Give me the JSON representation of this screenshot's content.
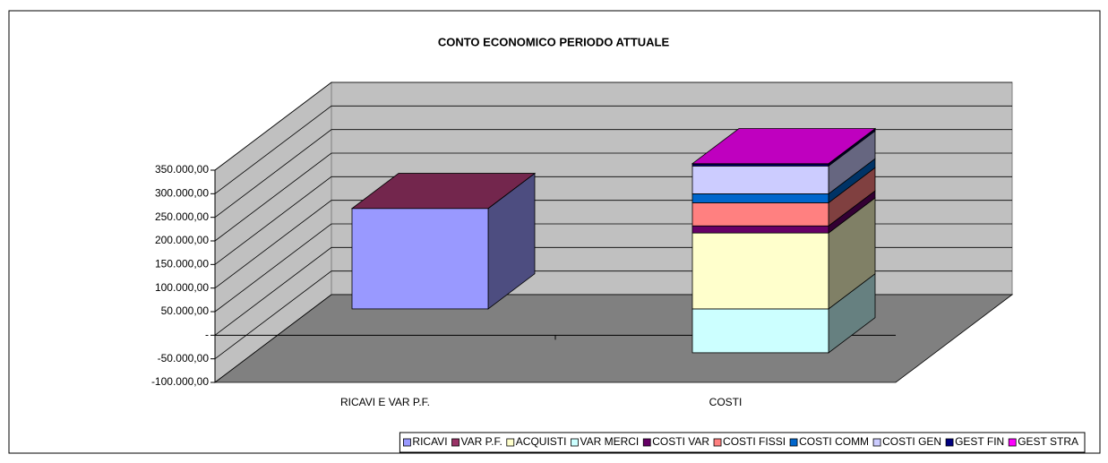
{
  "chart_data": {
    "type": "bar3d_stacked",
    "title": "CONTO ECONOMICO PERIODO ATTUALE",
    "categories": [
      "RICAVI E VAR P.F.",
      "COSTI"
    ],
    "series": [
      {
        "name": "RICAVI",
        "color": "#9999ff",
        "values": [
          213000,
          null
        ]
      },
      {
        "name": "VAR P.F.",
        "color": "#993366",
        "values": [
          0,
          null
        ]
      },
      {
        "name": "ACQUISTI",
        "color": "#ffffcc",
        "values": [
          null,
          161000
        ]
      },
      {
        "name": "VAR MERCI",
        "color": "#ccffff",
        "values": [
          null,
          -93000
        ]
      },
      {
        "name": "COSTI VAR",
        "color": "#660066",
        "values": [
          null,
          15000
        ]
      },
      {
        "name": "COSTI FISSI",
        "color": "#ff8080",
        "values": [
          null,
          49000
        ]
      },
      {
        "name": "COSTI COMM",
        "color": "#0066cc",
        "values": [
          null,
          19000
        ]
      },
      {
        "name": "COSTI GEN",
        "color": "#ccccff",
        "values": [
          null,
          59000
        ]
      },
      {
        "name": "GEST FIN",
        "color": "#000080",
        "values": [
          null,
          4000
        ]
      },
      {
        "name": "GEST STRA",
        "color": "#ff00ff",
        "values": [
          null,
          1000
        ]
      }
    ],
    "ylim": [
      -100000,
      350000
    ],
    "yticks": [
      {
        "value": -100000,
        "label": "-100.000,00"
      },
      {
        "value": -50000,
        "label": "-50.000,00"
      },
      {
        "value": 0,
        "label": "-"
      },
      {
        "value": 50000,
        "label": "50.000,00"
      },
      {
        "value": 100000,
        "label": "100.000,00"
      },
      {
        "value": 150000,
        "label": "150.000,00"
      },
      {
        "value": 200000,
        "label": "200.000,00"
      },
      {
        "value": 250000,
        "label": "250.000,00"
      },
      {
        "value": 300000,
        "label": "300.000,00"
      },
      {
        "value": 350000,
        "label": "350.000,00"
      }
    ],
    "grid": true,
    "legend": "bottom"
  }
}
